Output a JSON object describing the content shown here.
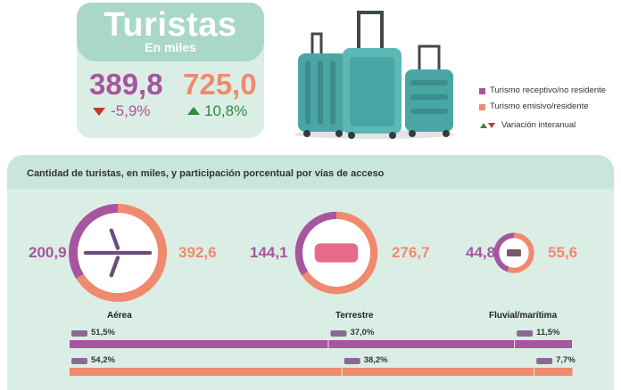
{
  "header": {
    "title": "Turistas",
    "subtitle": "En miles",
    "receptive_value": "389,8",
    "receptive_change": "-5,9%",
    "emissive_value": "725,0",
    "emissive_change": "10,8%"
  },
  "legend": {
    "receptive": "Turismo receptivo/no residente",
    "emissive": "Turismo emisivo/residente",
    "variation": "Variación interanual"
  },
  "colors": {
    "receptive": "#a8559f",
    "emissive": "#f08a6e",
    "up": "#2e8b3e",
    "down": "#c0392b",
    "panel": "#dbeee6",
    "header": "#a9d8c7"
  },
  "section_title": "Cantidad de turistas, en miles, y participación porcentual por vías de acceso",
  "chart_data": {
    "type": "pie",
    "title": "Cantidad de turistas, en miles, y participación porcentual por vías de acceso",
    "categories": [
      "Aérea",
      "Terrestre",
      "Fluvial/marítima"
    ],
    "icons": [
      "airplane-icon",
      "car-icon",
      "ship-icon"
    ],
    "series": [
      {
        "name": "Turismo receptivo/no residente",
        "values": [
          200.9,
          144.1,
          44.8
        ],
        "labels": [
          "200,9",
          "144,1",
          "44,8"
        ],
        "shares": [
          51.5,
          37.0,
          11.5
        ],
        "share_labels": [
          "51,5%",
          "37,0%",
          "11,5%"
        ]
      },
      {
        "name": "Turismo emisivo/residente",
        "values": [
          392.6,
          276.7,
          55.6
        ],
        "labels": [
          "392,6",
          "276,7",
          "55,6"
        ],
        "shares": [
          54.2,
          38.2,
          7.7
        ],
        "share_labels": [
          "54,2%",
          "38,2%",
          "7,7%"
        ]
      }
    ]
  }
}
